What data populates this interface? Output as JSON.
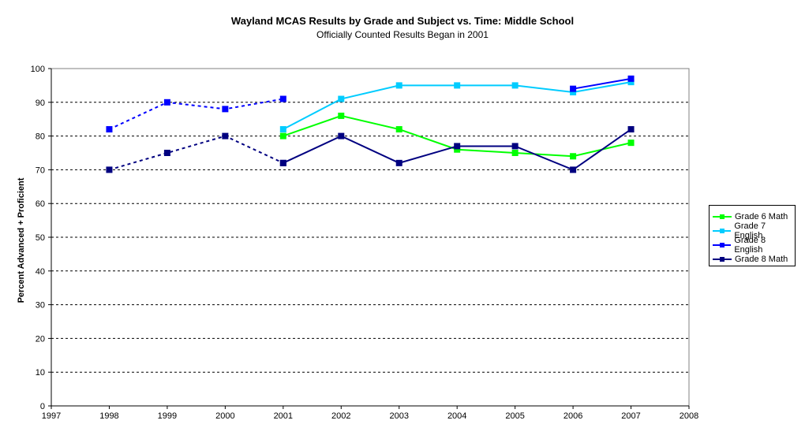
{
  "chart_data": {
    "type": "line",
    "title": "Wayland MCAS Results by Grade and Subject vs. Time: Middle School",
    "subtitle": "Officially Counted Results Began in 2001",
    "xlabel": "",
    "ylabel": "Percent Advanced + Proficient",
    "xlim": [
      1997,
      2008
    ],
    "ylim": [
      0,
      100
    ],
    "x_ticks": [
      "1997",
      "1998",
      "1999",
      "2000",
      "2001",
      "2002",
      "2003",
      "2004",
      "2005",
      "2006",
      "2007",
      "2008"
    ],
    "y_ticks": [
      "0",
      "10",
      "20",
      "30",
      "40",
      "50",
      "60",
      "70",
      "80",
      "90",
      "100"
    ],
    "grid": "horizontal dashed",
    "legend_position": "right",
    "series": [
      {
        "name": "Grade 6 Math",
        "color": "#00ff00",
        "style": "solid",
        "points": [
          [
            2001,
            80
          ],
          [
            2002,
            86
          ],
          [
            2003,
            82
          ],
          [
            2004,
            76
          ],
          [
            2005,
            75
          ],
          [
            2006,
            74
          ],
          [
            2007,
            78
          ]
        ]
      },
      {
        "name": "Grade 7 English",
        "color": "#00ccff",
        "style": "solid",
        "points": [
          [
            2001,
            82
          ],
          [
            2002,
            91
          ],
          [
            2003,
            95
          ],
          [
            2004,
            95
          ],
          [
            2005,
            95
          ],
          [
            2006,
            93
          ],
          [
            2007,
            96
          ]
        ]
      },
      {
        "name": "Grade 8 English",
        "color": "#0000ff",
        "style": "solid",
        "points": [
          [
            2006,
            94
          ],
          [
            2007,
            97
          ]
        ]
      },
      {
        "name": "Grade 8 Math",
        "color": "#000080",
        "style": "solid",
        "points": [
          [
            2001,
            72
          ],
          [
            2002,
            80
          ],
          [
            2003,
            72
          ],
          [
            2004,
            77
          ],
          [
            2005,
            77
          ],
          [
            2006,
            70
          ],
          [
            2007,
            82
          ]
        ]
      },
      {
        "name": "",
        "color": "#0000ff",
        "style": "dashed",
        "points": [
          [
            1998,
            82
          ],
          [
            1999,
            90
          ],
          [
            2000,
            88
          ],
          [
            2001,
            91
          ]
        ]
      },
      {
        "name": "",
        "color": "#000080",
        "style": "dashed",
        "points": [
          [
            1998,
            70
          ],
          [
            1999,
            75
          ],
          [
            2000,
            80
          ],
          [
            2001,
            72
          ]
        ]
      }
    ]
  }
}
